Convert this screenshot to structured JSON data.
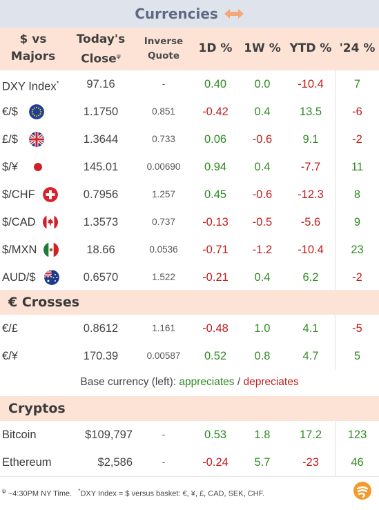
{
  "title": "Currencies",
  "colors": {
    "positive": "#2e8b22",
    "negative": "#c21b1b",
    "header_bg": "#fde3d6",
    "title_bg": "#dfe4ec",
    "title_text": "#5e6a82"
  },
  "header": {
    "pair_line1": "$ vs",
    "pair_line2": "Majors",
    "close_line1": "Today's",
    "close_line2": "Close",
    "close_mark": "ψ",
    "inverse_line1": "Inverse",
    "inverse_line2": "Quote",
    "d1": "1D %",
    "w1": "1W %",
    "ytd": "YTD %",
    "y24": "'24 %"
  },
  "majors": [
    {
      "label": "DXY Index",
      "mark": "*",
      "flag": "",
      "close": "97.16",
      "inverse": "-",
      "d1": "0.40",
      "w1": "0.0",
      "ytd": "-10.4",
      "y24": "7"
    },
    {
      "label": "€/$",
      "mark": "",
      "flag": "eu-flag-icon",
      "close": "1.1750",
      "inverse": "0.851",
      "d1": "-0.42",
      "w1": "0.4",
      "ytd": "13.5",
      "y24": "-6"
    },
    {
      "label": "£/$",
      "mark": "",
      "flag": "uk-flag-icon",
      "close": "1.3644",
      "inverse": "0.733",
      "d1": "0.06",
      "w1": "-0.6",
      "ytd": "9.1",
      "y24": "-2"
    },
    {
      "label": "$/¥",
      "mark": "",
      "flag": "japan-flag-icon",
      "close": "145.01",
      "inverse": "0.00690",
      "d1": "0.94",
      "w1": "0.4",
      "ytd": "-7.7",
      "y24": "11"
    },
    {
      "label": "$/CHF",
      "mark": "",
      "flag": "swiss-flag-icon",
      "close": "0.7956",
      "inverse": "1.257",
      "d1": "0.45",
      "w1": "-0.6",
      "ytd": "-12.3",
      "y24": "8"
    },
    {
      "label": "$/CAD",
      "mark": "",
      "flag": "canada-flag-icon",
      "close": "1.3573",
      "inverse": "0.737",
      "d1": "-0.13",
      "w1": "-0.5",
      "ytd": "-5.6",
      "y24": "9"
    },
    {
      "label": "$/MXN",
      "mark": "",
      "flag": "mexico-flag-icon",
      "close": "18.66",
      "inverse": "0.0536",
      "d1": "-0.71",
      "w1": "-1.2",
      "ytd": "-10.4",
      "y24": "23"
    },
    {
      "label": "AUD/$",
      "mark": "",
      "flag": "australia-flag-icon",
      "close": "0.6570",
      "inverse": "1.522",
      "d1": "-0.21",
      "w1": "0.4",
      "ytd": "6.2",
      "y24": "-2"
    }
  ],
  "crosses_title": "€ Crosses",
  "crosses": [
    {
      "label": "€/£",
      "close": "0.8612",
      "inverse": "1.161",
      "d1": "-0.48",
      "w1": "1.0",
      "ytd": "4.1",
      "y24": "-5"
    },
    {
      "label": "€/¥",
      "close": "170.39",
      "inverse": "0.00587",
      "d1": "0.52",
      "w1": "0.8",
      "ytd": "4.7",
      "y24": "5"
    }
  ],
  "legend": {
    "prefix": "Base currency (left):",
    "appreciates": "appreciates",
    "separator": "/",
    "depreciates": "depreciates"
  },
  "cryptos_title": "Cryptos",
  "cryptos": [
    {
      "label": "Bitcoin",
      "close": "$109,797",
      "inverse": "-",
      "d1": "0.53",
      "w1": "1.8",
      "ytd": "17.2",
      "y24": "123"
    },
    {
      "label": "Ethereum",
      "close": "$2,586",
      "inverse": "-",
      "d1": "-0.24",
      "w1": "5.7",
      "ytd": "-23",
      "y24": "46"
    }
  ],
  "footer": {
    "mark1": "ψ",
    "note1": "~4:30PM NY Time.",
    "mark2": "*",
    "note2": "DXY Index = $ versus basket: €, ¥, £, CAD, SEK, CHF."
  }
}
